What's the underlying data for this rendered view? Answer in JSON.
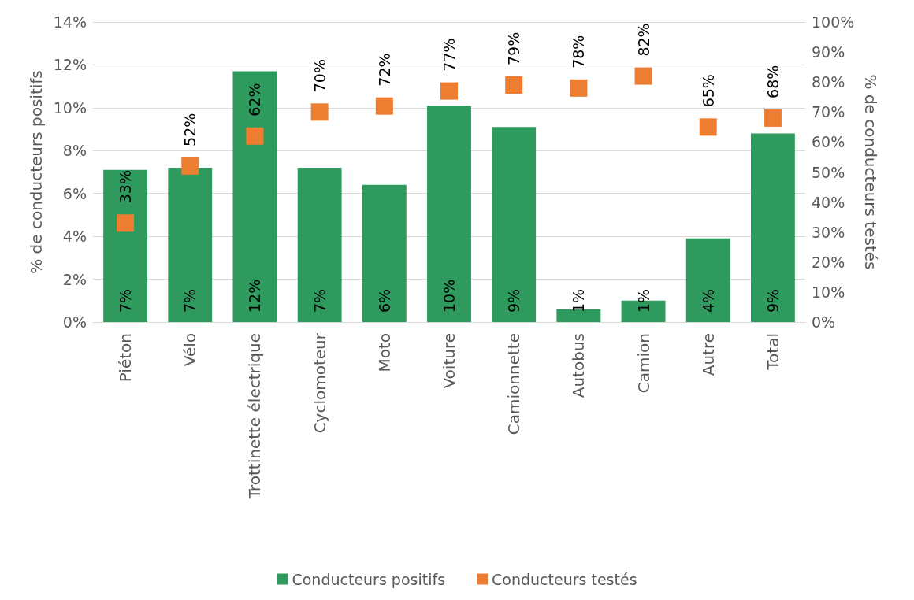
{
  "chart_data": {
    "type": "bar",
    "ylabel": "% de conducteurs positifs",
    "y2label": "% de conducteurs testés",
    "categories": [
      "Piéton",
      "Vélo",
      "Trottinette électrique",
      "Cyclomoteur",
      "Moto",
      "Voiture",
      "Camionnette",
      "Autobus",
      "Camion",
      "Autre",
      "Total"
    ],
    "series": [
      {
        "name": "Conducteurs positifs",
        "color": "#2e9a5e",
        "values": [
          7.1,
          7.2,
          11.7,
          7.2,
          6.4,
          10.1,
          9.1,
          0.6,
          1.0,
          3.9,
          8.8
        ],
        "value_labels": [
          "7%",
          "7%",
          "12%",
          "7%",
          "6%",
          "10%",
          "9%",
          "1%",
          "1%",
          "4%",
          "9%"
        ]
      },
      {
        "name": "Conducteurs testés",
        "type": "scatter",
        "axis": "y2",
        "marker": "square",
        "color": "#ed7d31",
        "values": [
          33,
          52,
          62,
          70,
          72,
          77,
          79,
          78,
          82,
          65,
          68
        ],
        "value_labels": [
          "33%",
          "52%",
          "62%",
          "70%",
          "72%",
          "77%",
          "79%",
          "78%",
          "82%",
          "65%",
          "68%"
        ]
      }
    ],
    "ylim": [
      0,
      14
    ],
    "yticks": [
      {
        "value": 0,
        "label": "0%"
      },
      {
        "value": 2,
        "label": "2%"
      },
      {
        "value": 4,
        "label": "4%"
      },
      {
        "value": 6,
        "label": "6%"
      },
      {
        "value": 8,
        "label": "8%"
      },
      {
        "value": 10,
        "label": "10%"
      },
      {
        "value": 12,
        "label": "12%"
      },
      {
        "value": 14,
        "label": "14%"
      }
    ],
    "y2lim": [
      0,
      100
    ],
    "y2ticks": [
      {
        "value": 0,
        "label": "0%"
      },
      {
        "value": 10,
        "label": "10%"
      },
      {
        "value": 20,
        "label": "20%"
      },
      {
        "value": 30,
        "label": "30%"
      },
      {
        "value": 40,
        "label": "40%"
      },
      {
        "value": 50,
        "label": "50%"
      },
      {
        "value": 60,
        "label": "60%"
      },
      {
        "value": 70,
        "label": "70%"
      },
      {
        "value": 80,
        "label": "80%"
      },
      {
        "value": 90,
        "label": "90%"
      },
      {
        "value": 100,
        "label": "100%"
      }
    ],
    "grid": "y",
    "legend": "bottom"
  }
}
